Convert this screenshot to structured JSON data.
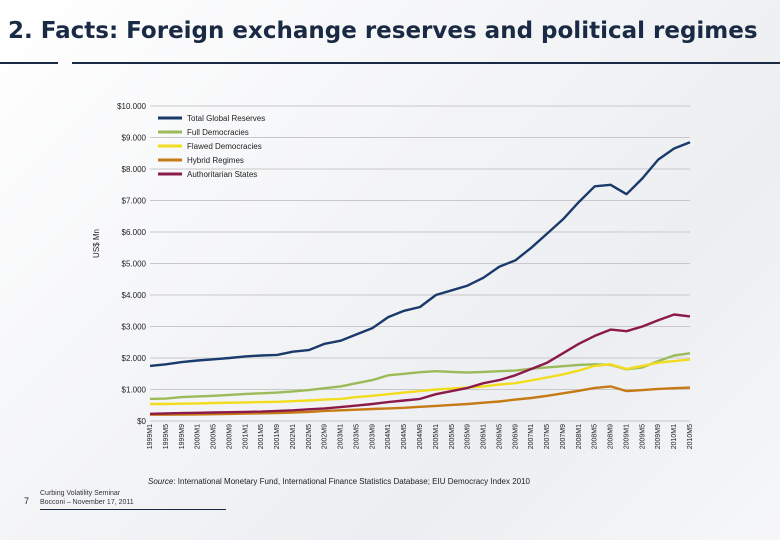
{
  "slide": {
    "title": "2.   Facts: Foreign exchange reserves and political regimes",
    "page_number": "7",
    "footer_line1": "Curbing Volatility Seminar",
    "footer_line2": "Bocconi – November 17, 2011"
  },
  "source": {
    "label": "Source",
    "text": ": International Monetary Fund, International Finance Statistics  Database; EIU Democracy Index 2010"
  },
  "chart_data": {
    "type": "line",
    "ylabel": "US$ Mn",
    "ylim": [
      0,
      10000
    ],
    "yticks": [
      0,
      1000,
      2000,
      3000,
      4000,
      5000,
      6000,
      7000,
      8000,
      9000,
      10000
    ],
    "ytick_labels": [
      "$0",
      "$1.000",
      "$2.000",
      "$3.000",
      "$4.000",
      "$5.000",
      "$6.000",
      "$7.000",
      "$8.000",
      "$9.000",
      "$10.000"
    ],
    "grid": true,
    "legend_position": "top-left",
    "x": [
      "1999M1",
      "1999M5",
      "1999M9",
      "2000M1",
      "2000M5",
      "2000M9",
      "2001M1",
      "2001M5",
      "2001M9",
      "2002M1",
      "2002M5",
      "2002M9",
      "2003M1",
      "2003M5",
      "2003M9",
      "2004M1",
      "2004M5",
      "2004M9",
      "2005M1",
      "2005M5",
      "2005M9",
      "2006M1",
      "2006M5",
      "2006M9",
      "2007M1",
      "2007M5",
      "2007M9",
      "2008M1",
      "2008M5",
      "2008M9",
      "2009M1",
      "2009M5",
      "2009M9",
      "2010M1",
      "2010M5"
    ],
    "series": [
      {
        "name": "Total Global Reserves",
        "color": "#1a3a6b",
        "values": [
          1750,
          1800,
          1870,
          1920,
          1960,
          2000,
          2050,
          2080,
          2100,
          2200,
          2250,
          2450,
          2550,
          2750,
          2950,
          3300,
          3500,
          3620,
          4000,
          4150,
          4300,
          4550,
          4900,
          5100,
          5500,
          5950,
          6400,
          6950,
          7450,
          7500,
          7200,
          7700,
          8300,
          8650,
          8850
        ]
      },
      {
        "name": "Full Democracies",
        "color": "#9bbb59",
        "values": [
          700,
          710,
          760,
          780,
          800,
          830,
          860,
          880,
          900,
          940,
          980,
          1040,
          1100,
          1200,
          1300,
          1450,
          1500,
          1550,
          1580,
          1560,
          1540,
          1560,
          1580,
          1600,
          1660,
          1700,
          1740,
          1780,
          1800,
          1780,
          1640,
          1700,
          1900,
          2080,
          2150
        ]
      },
      {
        "name": "Flawed Democracies",
        "color": "#f2dc1e",
        "values": [
          540,
          540,
          550,
          560,
          570,
          580,
          590,
          600,
          610,
          630,
          650,
          680,
          700,
          760,
          800,
          850,
          900,
          950,
          1000,
          1030,
          1060,
          1100,
          1160,
          1200,
          1290,
          1380,
          1480,
          1600,
          1750,
          1800,
          1650,
          1750,
          1850,
          1900,
          1950
        ]
      },
      {
        "name": "Hybrid Regimes",
        "color": "#c67a14",
        "values": [
          200,
          200,
          205,
          210,
          215,
          225,
          235,
          245,
          255,
          270,
          290,
          320,
          340,
          360,
          380,
          400,
          420,
          450,
          480,
          510,
          540,
          580,
          620,
          680,
          730,
          800,
          880,
          960,
          1050,
          1100,
          950,
          980,
          1020,
          1040,
          1060
        ]
      },
      {
        "name": "Authoritarian States",
        "color": "#8b1a4a",
        "values": [
          230,
          240,
          250,
          260,
          270,
          280,
          290,
          300,
          320,
          340,
          370,
          400,
          440,
          490,
          540,
          600,
          650,
          700,
          850,
          950,
          1050,
          1200,
          1300,
          1450,
          1650,
          1850,
          2150,
          2450,
          2700,
          2900,
          2850,
          3000,
          3200,
          3380,
          3320
        ]
      }
    ]
  }
}
